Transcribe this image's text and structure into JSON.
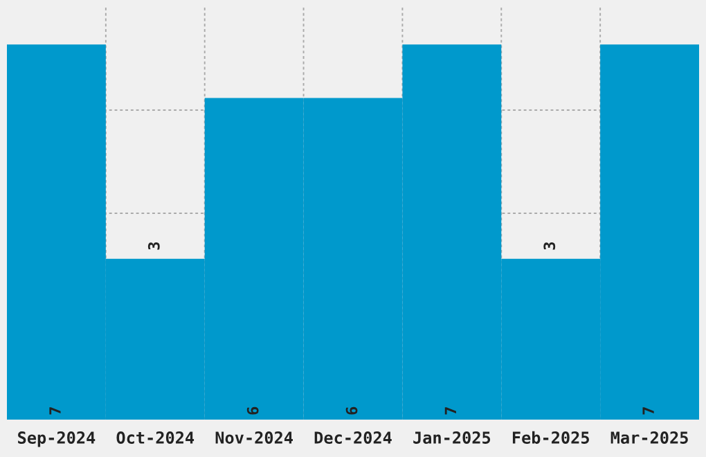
{
  "chart_data": {
    "type": "bar",
    "categories": [
      "Sep-2024",
      "Oct-2024",
      "Nov-2024",
      "Dec-2024",
      "Jan-2025",
      "Feb-2025",
      "Mar-2025"
    ],
    "values": [
      7,
      3,
      6,
      6,
      7,
      3,
      7
    ],
    "color": "#0099cc",
    "ylim": [
      0,
      7.7
    ],
    "tick_labels": "x",
    "data_labels": true,
    "grid": true
  }
}
